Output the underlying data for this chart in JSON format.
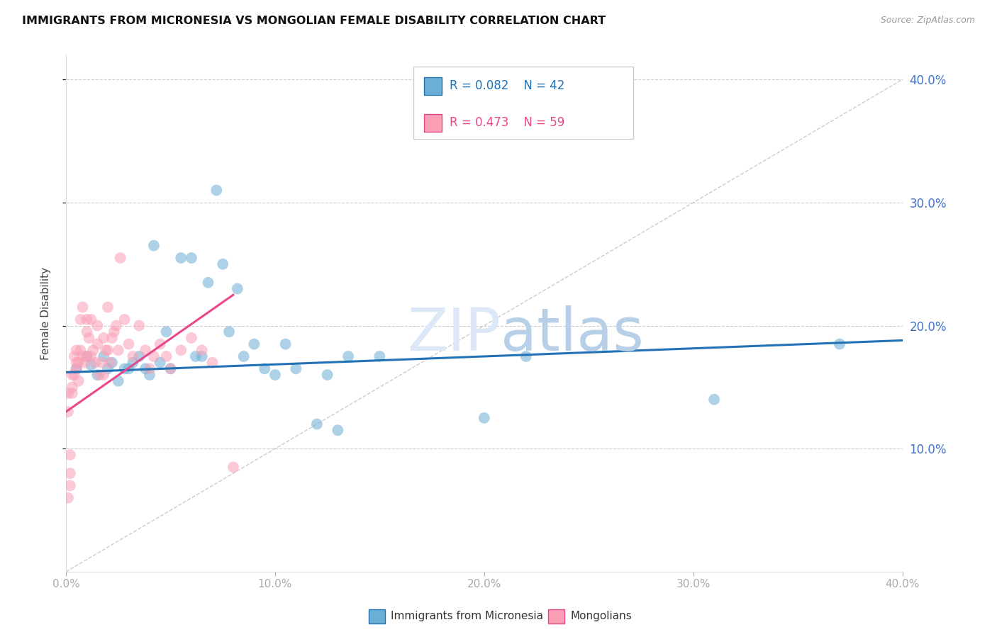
{
  "title": "IMMIGRANTS FROM MICRONESIA VS MONGOLIAN FEMALE DISABILITY CORRELATION CHART",
  "source": "Source: ZipAtlas.com",
  "ylabel": "Female Disability",
  "legend_label_blue": "Immigrants from Micronesia",
  "legend_label_pink": "Mongolians",
  "r_blue": 0.082,
  "n_blue": 42,
  "r_pink": 0.473,
  "n_pink": 59,
  "xlim": [
    0.0,
    0.4
  ],
  "ylim": [
    0.0,
    0.42
  ],
  "xtick_labels": [
    "0.0%",
    "",
    "10.0%",
    "",
    "20.0%",
    "",
    "30.0%",
    "",
    "40.0%"
  ],
  "xtick_vals": [
    0.0,
    0.05,
    0.1,
    0.15,
    0.2,
    0.25,
    0.3,
    0.35,
    0.4
  ],
  "ytick_labels": [
    "10.0%",
    "20.0%",
    "30.0%",
    "40.0%"
  ],
  "ytick_vals": [
    0.1,
    0.2,
    0.3,
    0.4
  ],
  "color_blue": "#6baed6",
  "color_pink": "#fa9fb5",
  "color_blue_line": "#2171b5",
  "color_pink_line": "#e8488a",
  "color_right_axis": "#4472c4",
  "watermark_zip": "ZIP",
  "watermark_atlas": "atlas",
  "blue_scatter_x": [
    0.005,
    0.01,
    0.012,
    0.015,
    0.018,
    0.02,
    0.022,
    0.025,
    0.028,
    0.03,
    0.032,
    0.035,
    0.038,
    0.04,
    0.042,
    0.045,
    0.048,
    0.05,
    0.055,
    0.06,
    0.062,
    0.065,
    0.068,
    0.072,
    0.075,
    0.078,
    0.082,
    0.085,
    0.09,
    0.095,
    0.1,
    0.105,
    0.11,
    0.12,
    0.125,
    0.13,
    0.135,
    0.15,
    0.2,
    0.22,
    0.31,
    0.37
  ],
  "blue_scatter_y": [
    0.165,
    0.175,
    0.168,
    0.16,
    0.175,
    0.165,
    0.17,
    0.155,
    0.165,
    0.165,
    0.17,
    0.175,
    0.165,
    0.16,
    0.265,
    0.17,
    0.195,
    0.165,
    0.255,
    0.255,
    0.175,
    0.175,
    0.235,
    0.31,
    0.25,
    0.195,
    0.23,
    0.175,
    0.185,
    0.165,
    0.16,
    0.185,
    0.165,
    0.12,
    0.16,
    0.115,
    0.175,
    0.175,
    0.125,
    0.175,
    0.14,
    0.185
  ],
  "pink_scatter_x": [
    0.001,
    0.001,
    0.001,
    0.002,
    0.002,
    0.002,
    0.003,
    0.003,
    0.003,
    0.004,
    0.004,
    0.005,
    0.005,
    0.005,
    0.006,
    0.006,
    0.007,
    0.007,
    0.008,
    0.008,
    0.009,
    0.01,
    0.01,
    0.01,
    0.011,
    0.012,
    0.012,
    0.013,
    0.014,
    0.015,
    0.015,
    0.016,
    0.017,
    0.018,
    0.018,
    0.019,
    0.02,
    0.02,
    0.021,
    0.022,
    0.023,
    0.024,
    0.025,
    0.026,
    0.028,
    0.03,
    0.032,
    0.035,
    0.038,
    0.04,
    0.042,
    0.045,
    0.048,
    0.05,
    0.055,
    0.06,
    0.065,
    0.07,
    0.08
  ],
  "pink_scatter_y": [
    0.145,
    0.13,
    0.06,
    0.07,
    0.08,
    0.095,
    0.16,
    0.15,
    0.145,
    0.175,
    0.16,
    0.17,
    0.18,
    0.165,
    0.155,
    0.17,
    0.205,
    0.18,
    0.215,
    0.175,
    0.17,
    0.205,
    0.195,
    0.175,
    0.19,
    0.205,
    0.175,
    0.18,
    0.17,
    0.2,
    0.185,
    0.16,
    0.17,
    0.16,
    0.19,
    0.18,
    0.215,
    0.18,
    0.17,
    0.19,
    0.195,
    0.2,
    0.18,
    0.255,
    0.205,
    0.185,
    0.175,
    0.2,
    0.18,
    0.165,
    0.175,
    0.185,
    0.175,
    0.165,
    0.18,
    0.19,
    0.18,
    0.17,
    0.085
  ],
  "blue_line_x": [
    0.0,
    0.4
  ],
  "blue_line_y": [
    0.162,
    0.188
  ],
  "pink_line_x": [
    0.0,
    0.08
  ],
  "pink_line_y": [
    0.13,
    0.225
  ]
}
